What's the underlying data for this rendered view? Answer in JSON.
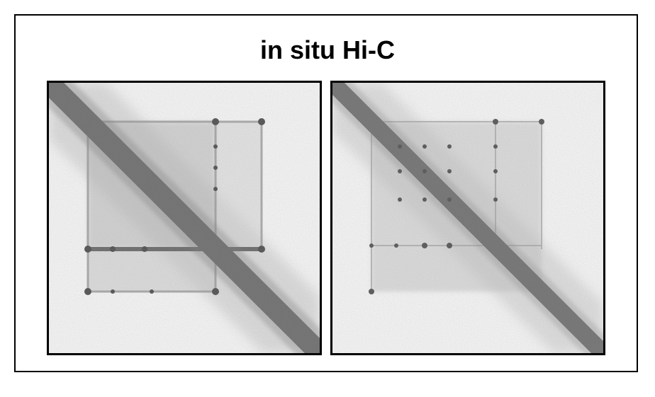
{
  "figure": {
    "title": "in situ Hi-C",
    "colors": {
      "background": "#ffffff",
      "frame": "#000000",
      "panel_background": "#f2f2f2",
      "signal": "#6b6b6b"
    }
  },
  "panels": [
    {
      "id": "left",
      "content": "contact-map"
    },
    {
      "id": "right",
      "content": "contact-map"
    }
  ]
}
